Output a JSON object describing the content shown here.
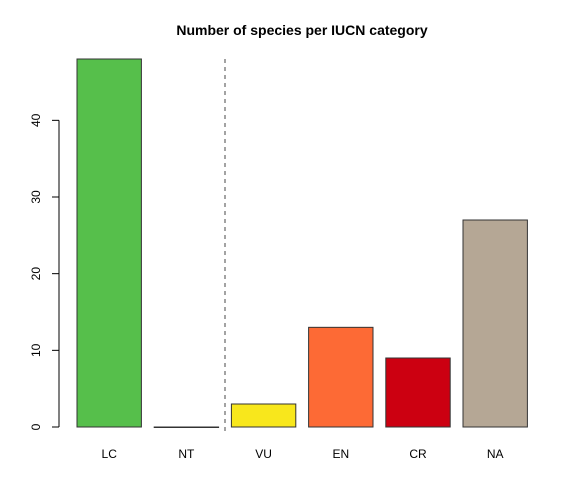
{
  "chart_data": {
    "type": "bar",
    "title": "Number of species per IUCN category",
    "xlabel": "",
    "ylabel": "",
    "categories": [
      "LC",
      "NT",
      "VU",
      "EN",
      "CR",
      "NA"
    ],
    "values": [
      48,
      0,
      3,
      13,
      9,
      27
    ],
    "colors": [
      "#56bf4b",
      "#b9d24a",
      "#f8e71c",
      "#fd6a35",
      "#cc0011",
      "#b5a795"
    ],
    "ylim": [
      0,
      48
    ],
    "yticks": [
      0,
      10,
      20,
      30,
      40
    ],
    "divider_after_category": "NT",
    "grid": false,
    "legend": "none"
  }
}
